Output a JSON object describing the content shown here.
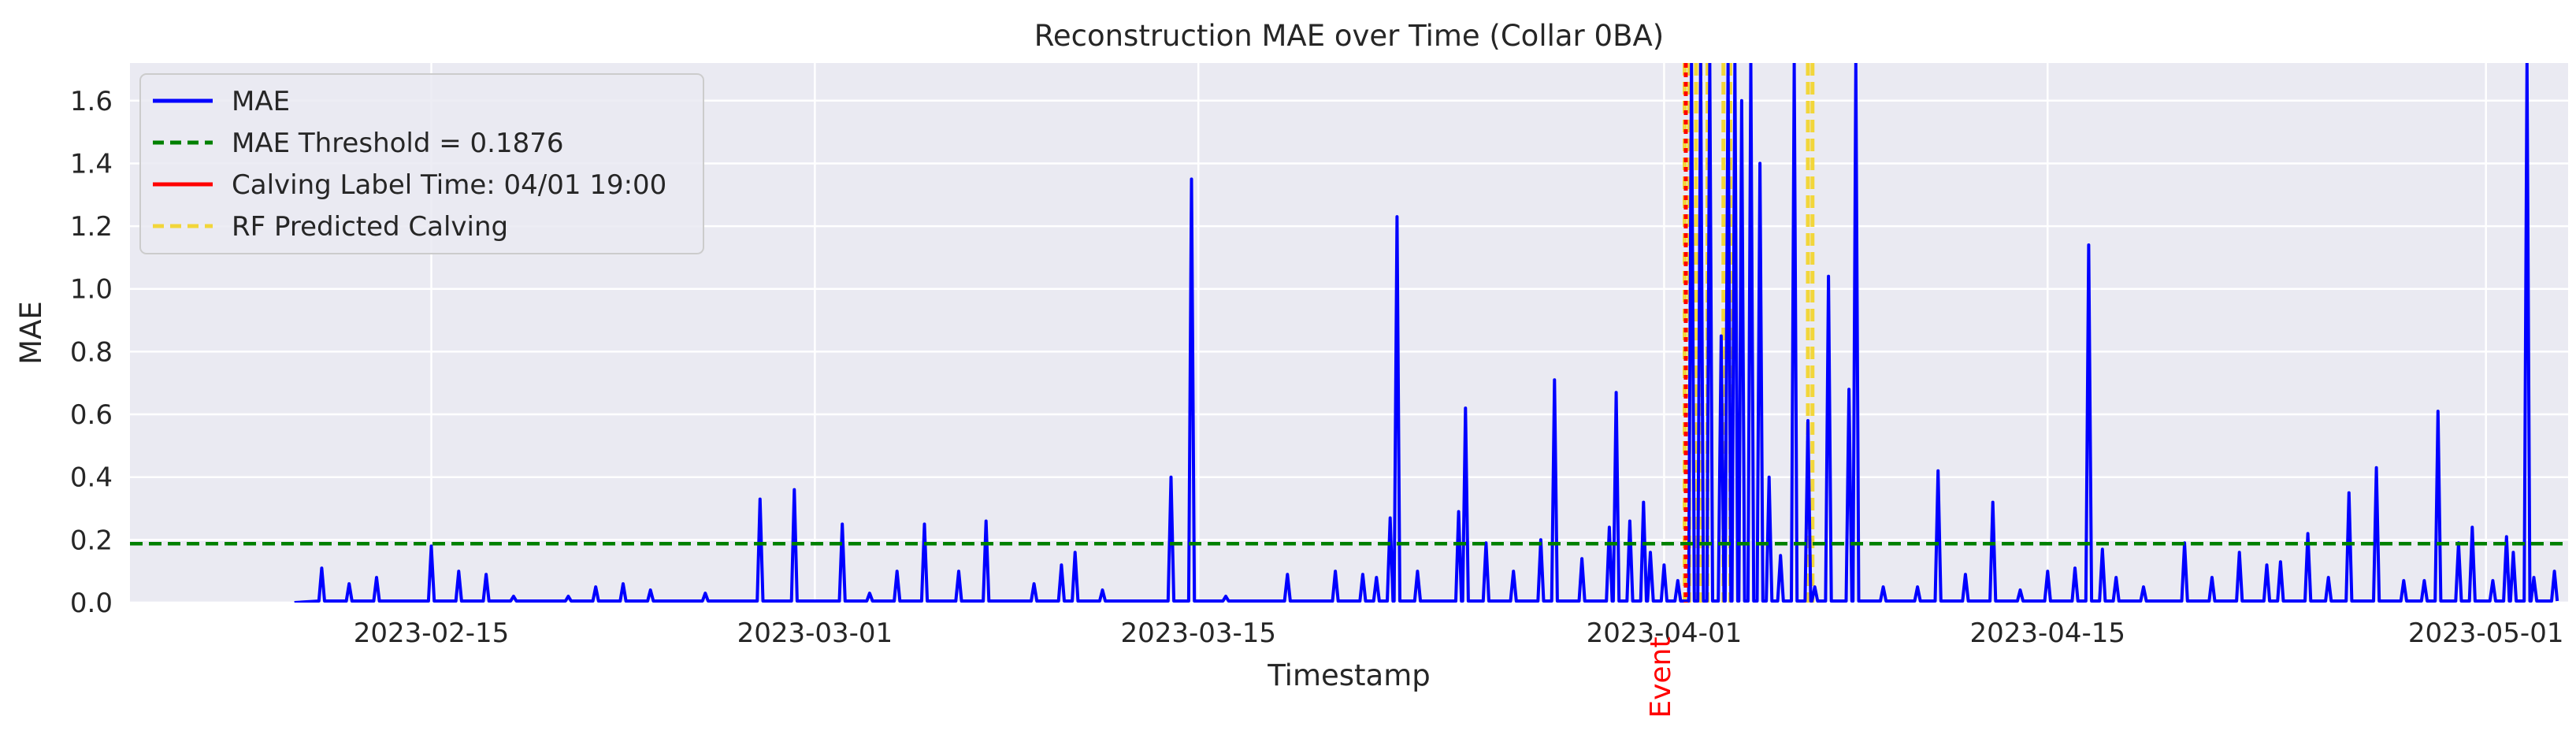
{
  "chart_data": {
    "type": "line",
    "title": "Reconstruction MAE over Time (Collar 0BA)",
    "xlabel": "Timestamp",
    "ylabel": "MAE",
    "xlim": [
      "2023-02-04",
      "2023-05-04"
    ],
    "ylim": [
      0,
      1.72
    ],
    "grid": true,
    "legend_position": "top-left",
    "x_ticks": [
      "2023-02-15",
      "2023-03-01",
      "2023-03-15",
      "2023-04-01",
      "2023-04-15",
      "2023-05-01"
    ],
    "y_ticks": [
      "0.0",
      "0.2",
      "0.4",
      "0.6",
      "0.8",
      "1.0",
      "1.2",
      "1.4",
      "1.6"
    ],
    "threshold": {
      "label": "MAE Threshold = 0.1876",
      "value": 0.1876,
      "color": "#008000"
    },
    "calving_label": {
      "label": "Calving Label Time: 04/01 19:00",
      "time": "2023-04-01 19:00",
      "color": "#ff0000"
    },
    "event_annotation": {
      "text": "Event",
      "time": "2023-04-01 19:00",
      "color": "#ff0000"
    },
    "rf_predictions": {
      "label": "RF Predicted Calving",
      "color": "#f2d63a",
      "times": [
        "2023-04-01 18:00",
        "2023-04-01 22:00",
        "2023-04-02 04:00",
        "2023-04-02 08:00",
        "2023-04-02 14:00",
        "2023-04-03 04:00",
        "2023-04-03 10:00",
        "2023-04-06 06:00",
        "2023-04-06 10:00"
      ]
    },
    "series": [
      {
        "name": "MAE",
        "color": "#0000ff",
        "spikes": [
          [
            "2023-02-11 00:00",
            0.11
          ],
          [
            "2023-02-12 00:00",
            0.06
          ],
          [
            "2023-02-13 00:00",
            0.08
          ],
          [
            "2023-02-15 00:00",
            0.18
          ],
          [
            "2023-02-16 00:00",
            0.1
          ],
          [
            "2023-02-17 00:00",
            0.09
          ],
          [
            "2023-02-18 00:00",
            0.02
          ],
          [
            "2023-02-20 00:00",
            0.02
          ],
          [
            "2023-02-21 00:00",
            0.05
          ],
          [
            "2023-02-22 00:00",
            0.06
          ],
          [
            "2023-02-23 00:00",
            0.04
          ],
          [
            "2023-02-25 00:00",
            0.03
          ],
          [
            "2023-02-27 00:00",
            0.33
          ],
          [
            "2023-02-28 06:00",
            0.36
          ],
          [
            "2023-03-02 00:00",
            0.25
          ],
          [
            "2023-03-03 00:00",
            0.03
          ],
          [
            "2023-03-04 00:00",
            0.1
          ],
          [
            "2023-03-05 00:00",
            0.25
          ],
          [
            "2023-03-06 06:00",
            0.1
          ],
          [
            "2023-03-07 06:00",
            0.26
          ],
          [
            "2023-03-09 00:00",
            0.06
          ],
          [
            "2023-03-10 00:00",
            0.12
          ],
          [
            "2023-03-10 12:00",
            0.16
          ],
          [
            "2023-03-11 12:00",
            0.04
          ],
          [
            "2023-03-14 00:00",
            0.4
          ],
          [
            "2023-03-14 18:00",
            1.35
          ],
          [
            "2023-03-16 00:00",
            0.02
          ],
          [
            "2023-03-18 06:00",
            0.09
          ],
          [
            "2023-03-20 00:00",
            0.1
          ],
          [
            "2023-03-21 00:00",
            0.09
          ],
          [
            "2023-03-21 12:00",
            0.08
          ],
          [
            "2023-03-22 00:00",
            0.27
          ],
          [
            "2023-03-22 06:00",
            1.23
          ],
          [
            "2023-03-23 00:00",
            0.1
          ],
          [
            "2023-03-24 12:00",
            0.29
          ],
          [
            "2023-03-24 18:00",
            0.62
          ],
          [
            "2023-03-25 12:00",
            0.19
          ],
          [
            "2023-03-26 12:00",
            0.1
          ],
          [
            "2023-03-27 12:00",
            0.2
          ],
          [
            "2023-03-28 00:00",
            0.71
          ],
          [
            "2023-03-29 00:00",
            0.14
          ],
          [
            "2023-03-30 00:00",
            0.24
          ],
          [
            "2023-03-30 06:00",
            0.67
          ],
          [
            "2023-03-30 18:00",
            0.26
          ],
          [
            "2023-03-31 06:00",
            0.32
          ],
          [
            "2023-03-31 12:00",
            0.16
          ],
          [
            "2023-04-01 00:00",
            0.12
          ],
          [
            "2023-04-01 12:00",
            0.07
          ],
          [
            "2023-04-02 00:00",
            1.72
          ],
          [
            "2023-04-02 08:00",
            1.72
          ],
          [
            "2023-04-02 16:00",
            1.72
          ],
          [
            "2023-04-03 02:00",
            0.85
          ],
          [
            "2023-04-03 08:00",
            1.72
          ],
          [
            "2023-04-03 14:00",
            1.72
          ],
          [
            "2023-04-03 20:00",
            1.6
          ],
          [
            "2023-04-04 04:00",
            1.72
          ],
          [
            "2023-04-04 12:00",
            1.4
          ],
          [
            "2023-04-04 20:00",
            0.4
          ],
          [
            "2023-04-05 06:00",
            0.15
          ],
          [
            "2023-04-05 18:00",
            1.72
          ],
          [
            "2023-04-06 06:00",
            0.58
          ],
          [
            "2023-04-06 12:00",
            0.05
          ],
          [
            "2023-04-07 00:00",
            1.04
          ],
          [
            "2023-04-07 18:00",
            0.68
          ],
          [
            "2023-04-08 00:00",
            1.72
          ],
          [
            "2023-04-09 00:00",
            0.05
          ],
          [
            "2023-04-10 06:00",
            0.05
          ],
          [
            "2023-04-11 00:00",
            0.42
          ],
          [
            "2023-04-12 00:00",
            0.09
          ],
          [
            "2023-04-13 00:00",
            0.32
          ],
          [
            "2023-04-14 00:00",
            0.04
          ],
          [
            "2023-04-15 00:00",
            0.1
          ],
          [
            "2023-04-16 00:00",
            0.11
          ],
          [
            "2023-04-16 12:00",
            1.14
          ],
          [
            "2023-04-17 00:00",
            0.17
          ],
          [
            "2023-04-17 12:00",
            0.08
          ],
          [
            "2023-04-18 12:00",
            0.05
          ],
          [
            "2023-04-20 00:00",
            0.19
          ],
          [
            "2023-04-21 00:00",
            0.08
          ],
          [
            "2023-04-22 00:00",
            0.16
          ],
          [
            "2023-04-23 00:00",
            0.12
          ],
          [
            "2023-04-23 12:00",
            0.13
          ],
          [
            "2023-04-24 12:00",
            0.22
          ],
          [
            "2023-04-25 06:00",
            0.08
          ],
          [
            "2023-04-26 00:00",
            0.35
          ],
          [
            "2023-04-27 00:00",
            0.43
          ],
          [
            "2023-04-28 00:00",
            0.07
          ],
          [
            "2023-04-28 18:00",
            0.07
          ],
          [
            "2023-04-29 06:00",
            0.61
          ],
          [
            "2023-04-30 00:00",
            0.19
          ],
          [
            "2023-04-30 12:00",
            0.24
          ],
          [
            "2023-05-01 06:00",
            0.07
          ],
          [
            "2023-05-01 18:00",
            0.21
          ],
          [
            "2023-05-02 00:00",
            0.16
          ],
          [
            "2023-05-02 12:00",
            1.72
          ],
          [
            "2023-05-02 18:00",
            0.08
          ],
          [
            "2023-05-03 12:00",
            0.1
          ]
        ]
      }
    ],
    "legend": [
      {
        "label": "MAE",
        "style": "solid",
        "color": "#0000ff"
      },
      {
        "label": "MAE Threshold = 0.1876",
        "style": "dashed",
        "color": "#008000"
      },
      {
        "label": "Calving Label Time: 04/01 19:00",
        "style": "solid",
        "color": "#ff0000"
      },
      {
        "label": "RF Predicted Calving",
        "style": "dashed",
        "color": "#f2d63a"
      }
    ]
  }
}
